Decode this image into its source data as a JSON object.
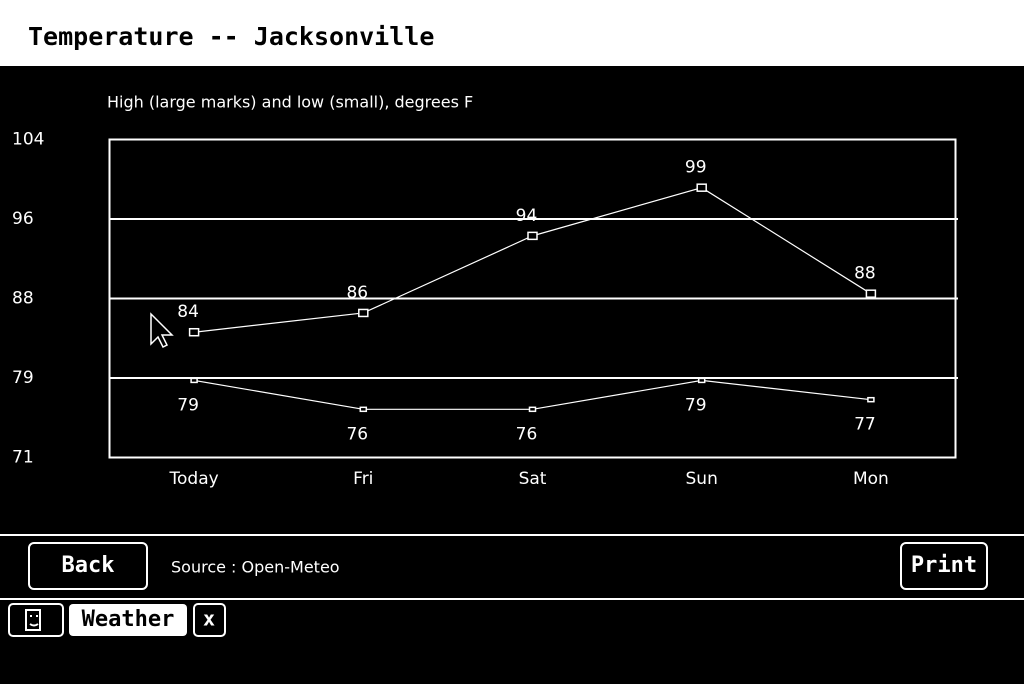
{
  "header": {
    "title": "Temperature -- Jacksonville"
  },
  "chart_data": {
    "type": "line",
    "subtitle": "High (large marks) and low (small), degrees F",
    "categories": [
      "Today",
      "Fri",
      "Sat",
      "Sun",
      "Mon"
    ],
    "series": [
      {
        "color": "#ffffff",
        "marker": "large",
        "label_position": "above",
        "values": [
          84,
          86,
          94,
          99,
          88
        ]
      },
      {
        "color": "#ffffff",
        "marker": "small",
        "label_position": "below",
        "values": [
          79,
          76,
          76,
          79,
          77
        ]
      }
    ],
    "ylim": [
      71,
      104
    ],
    "yticks": [
      104,
      {
        "value": 95.75,
        "label": "96"
      },
      {
        "value": 87.5,
        "label": "88"
      },
      {
        "value": 79.25,
        "label": "79"
      },
      71
    ],
    "grid": true
  },
  "footer": {
    "back": "Back",
    "source": "Source : Open-Meteo",
    "print": "Print"
  },
  "taskbar": {
    "app": "Weather",
    "close": "x"
  }
}
